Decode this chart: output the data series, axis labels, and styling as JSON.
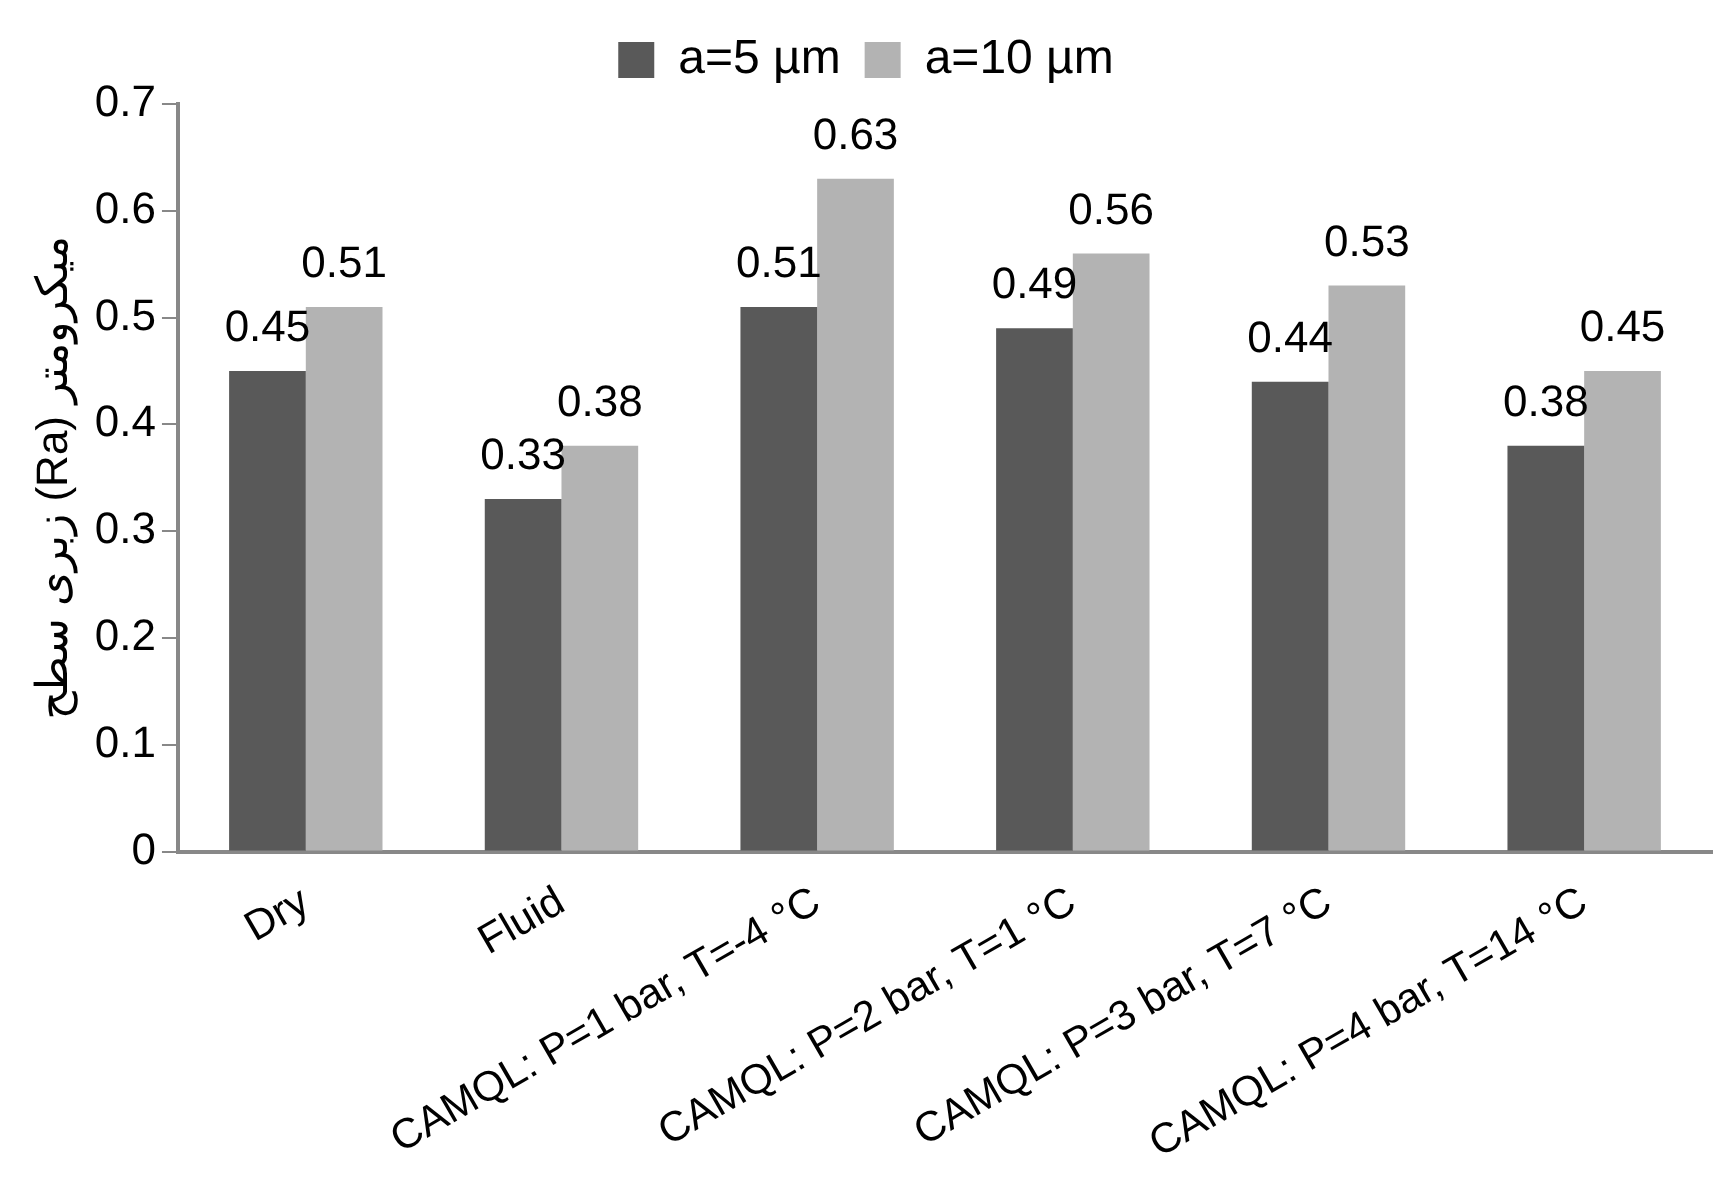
{
  "chart_data": {
    "type": "bar",
    "ylabel": "زبری سطح (Ra) میکرومتر",
    "categories": [
      "Dry",
      "Fluid",
      "CAMQL: P=1 bar, T=-4 °C",
      "CAMQL: P=2 bar, T=1 °C",
      "CAMQL: P=3 bar, T=7 °C",
      "CAMQL: P=4 bar, T=14 °C"
    ],
    "series": [
      {
        "name": "a=5 µm",
        "color": "#595959",
        "values": [
          0.45,
          0.33,
          0.51,
          0.49,
          0.44,
          0.38
        ]
      },
      {
        "name": "a=10 µm",
        "color": "#b3b3b3",
        "values": [
          0.51,
          0.38,
          0.63,
          0.56,
          0.53,
          0.45
        ]
      }
    ],
    "ylim": [
      0,
      0.7
    ],
    "yticks": [
      0,
      0.1,
      0.2,
      0.3,
      0.4,
      0.5,
      0.6,
      0.7
    ],
    "grid": false,
    "legend": "top",
    "data_labels": true
  }
}
